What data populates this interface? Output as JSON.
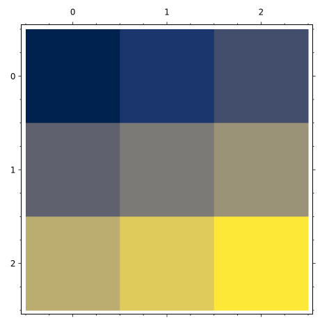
{
  "chart_data": {
    "type": "heatmap",
    "title": "",
    "xlabel": "",
    "ylabel": "",
    "x_ticks": [
      "0",
      "1",
      "2"
    ],
    "y_ticks": [
      "0",
      "1",
      "2"
    ],
    "x_tick_position": "top-and-bottom",
    "y_tick_position": "left-and-right",
    "xlim": [
      -0.5,
      2.5
    ],
    "ylim": [
      2.5,
      -0.5
    ],
    "grid": false,
    "colormap": "cividis",
    "values": [
      [
        0.0,
        0.125,
        0.25
      ],
      [
        0.375,
        0.5,
        0.625
      ],
      [
        0.75,
        0.875,
        1.0
      ]
    ],
    "cell_colors": [
      [
        "#00224e",
        "#1b356d",
        "#434e6c"
      ],
      [
        "#60616f",
        "#7b7a77",
        "#9a9378"
      ],
      [
        "#bbad6f",
        "#dfca5c",
        "#fde737"
      ]
    ]
  }
}
